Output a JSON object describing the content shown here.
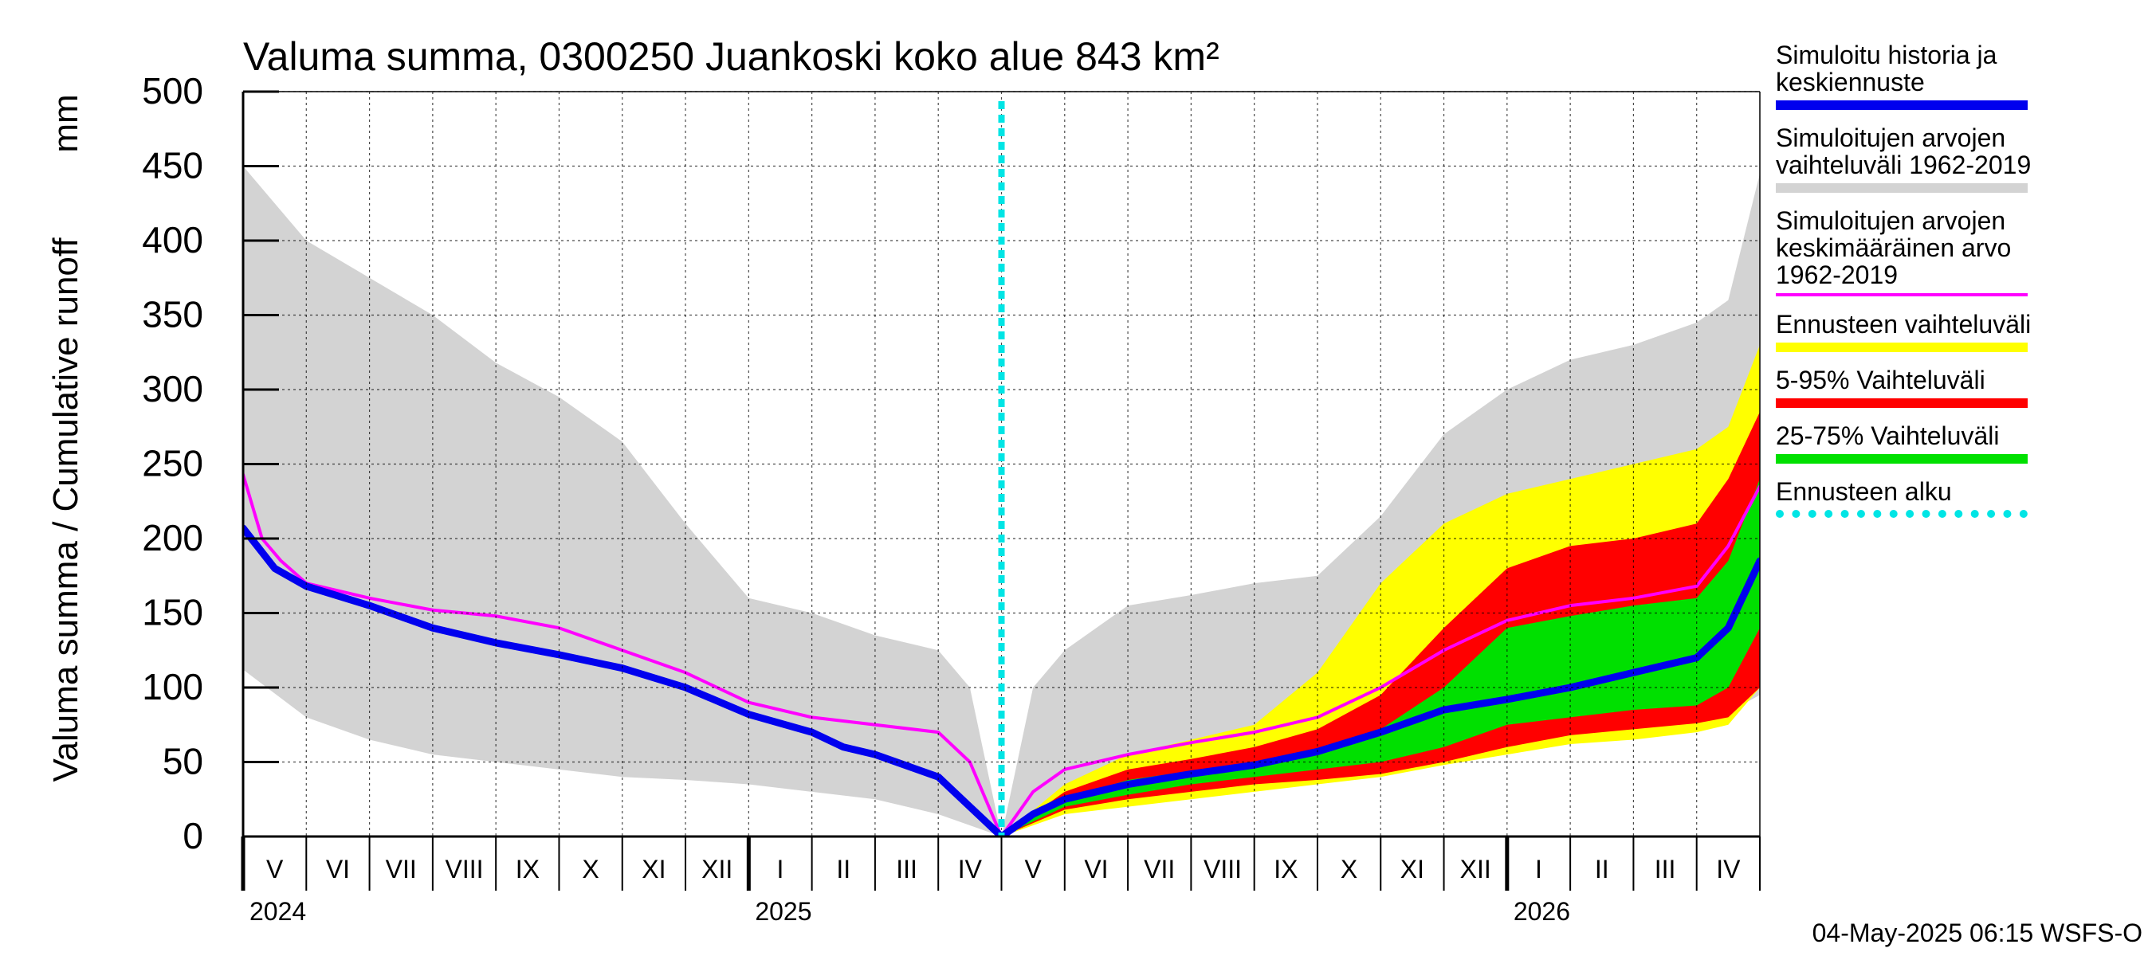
{
  "chart_data": {
    "type": "area",
    "title": "Valuma summa, 0300250 Juankoski koko alue 843 km²",
    "ylabel": "Valuma summa / Cumulative runoff",
    "yunit": "mm",
    "ylim": [
      0,
      500
    ],
    "yticks": [
      0,
      50,
      100,
      150,
      200,
      250,
      300,
      350,
      400,
      450,
      500
    ],
    "xlim": [
      0,
      24
    ],
    "forecast_start": 12,
    "month_labels": [
      "V",
      "VI",
      "VII",
      "VIII",
      "IX",
      "X",
      "XI",
      "XII",
      "I",
      "II",
      "III",
      "IV",
      "V",
      "VI",
      "VII",
      "VIII",
      "IX",
      "X",
      "XI",
      "XII",
      "I",
      "II",
      "III",
      "IV"
    ],
    "year_labels": [
      {
        "label": "2024",
        "month_index": 0
      },
      {
        "label": "2025",
        "month_index": 8
      },
      {
        "label": "2026",
        "month_index": 20
      }
    ],
    "series": [
      {
        "name": "Simuloitujen arvojen vaihteluväli 1962-2019 (upper)",
        "color": "#d3d3d3",
        "x": [
          0,
          1,
          2,
          3,
          4,
          5,
          6,
          7,
          8,
          9,
          10,
          11,
          11.5,
          12,
          12.5,
          13,
          14,
          15,
          16,
          17,
          18,
          19,
          20,
          21,
          22,
          23,
          23.5,
          24
        ],
        "y": [
          450,
          400,
          375,
          350,
          318,
          295,
          265,
          210,
          160,
          150,
          135,
          125,
          100,
          0,
          100,
          125,
          155,
          162,
          170,
          175,
          215,
          270,
          300,
          320,
          330,
          345,
          360,
          445
        ]
      },
      {
        "name": "Simuloitujen arvojen vaihteluväli 1962-2019 (lower)",
        "color": "#d3d3d3",
        "x": [
          0,
          1,
          2,
          3,
          4,
          5,
          6,
          7,
          8,
          9,
          10,
          11,
          12,
          13,
          14,
          15,
          16,
          17,
          18,
          19,
          20,
          21,
          22,
          23,
          24
        ],
        "y": [
          112,
          80,
          65,
          55,
          50,
          45,
          40,
          38,
          35,
          30,
          25,
          15,
          0,
          18,
          25,
          28,
          32,
          38,
          45,
          55,
          60,
          65,
          68,
          72,
          95
        ]
      },
      {
        "name": "Ennusteen vaihteluväli (upper)",
        "color": "#ffff00",
        "x": [
          12,
          13,
          14,
          15,
          16,
          17,
          17.5,
          18,
          19,
          20,
          21,
          22,
          23,
          23.5,
          24
        ],
        "y": [
          0,
          35,
          55,
          65,
          75,
          110,
          140,
          170,
          210,
          230,
          240,
          250,
          260,
          275,
          330
        ]
      },
      {
        "name": "Ennusteen vaihteluväli (lower)",
        "color": "#ffff00",
        "x": [
          12,
          13,
          14,
          15,
          16,
          17,
          18,
          19,
          20,
          21,
          22,
          23,
          23.5,
          24
        ],
        "y": [
          0,
          15,
          20,
          25,
          30,
          35,
          40,
          48,
          55,
          62,
          65,
          70,
          75,
          100
        ]
      },
      {
        "name": "5-95% Vaihteluväli (upper)",
        "color": "#ff0000",
        "x": [
          12,
          13,
          14,
          15,
          16,
          17,
          18,
          19,
          20,
          21,
          22,
          23,
          23.5,
          24
        ],
        "y": [
          0,
          30,
          45,
          52,
          60,
          72,
          95,
          140,
          180,
          195,
          200,
          210,
          240,
          285
        ]
      },
      {
        "name": "5-95% Vaihteluväli (lower)",
        "color": "#ff0000",
        "x": [
          12,
          13,
          14,
          15,
          16,
          17,
          18,
          19,
          20,
          21,
          22,
          23,
          23.5,
          24
        ],
        "y": [
          0,
          18,
          25,
          30,
          35,
          38,
          42,
          50,
          60,
          68,
          72,
          76,
          80,
          100
        ]
      },
      {
        "name": "25-75% Vaihteluväli (upper)",
        "color": "#00e000",
        "x": [
          12,
          13,
          14,
          15,
          16,
          17,
          18,
          19,
          20,
          21,
          22,
          23,
          23.5,
          24
        ],
        "y": [
          0,
          25,
          38,
          44,
          50,
          58,
          72,
          100,
          140,
          148,
          155,
          160,
          185,
          240
        ]
      },
      {
        "name": "25-75% Vaihteluväli (lower)",
        "color": "#00e000",
        "x": [
          12,
          13,
          14,
          15,
          16,
          17,
          18,
          19,
          20,
          21,
          22,
          23,
          23.5,
          24
        ],
        "y": [
          0,
          20,
          28,
          35,
          40,
          45,
          50,
          60,
          75,
          80,
          85,
          88,
          100,
          140
        ]
      },
      {
        "name": "Simuloitujen arvojen keskimääräinen arvo 1962-2019",
        "color": "#ff00ff",
        "x": [
          0,
          0.3,
          0.6,
          1,
          1.5,
          2,
          3,
          4,
          5,
          6,
          7,
          8,
          9,
          10,
          11,
          11.5,
          12,
          12.5,
          13,
          14,
          15,
          16,
          17,
          18,
          19,
          20,
          21,
          22,
          23,
          23.5,
          24
        ],
        "y": [
          243,
          200,
          185,
          170,
          165,
          160,
          152,
          148,
          140,
          125,
          110,
          90,
          80,
          75,
          70,
          50,
          0,
          30,
          45,
          55,
          63,
          70,
          80,
          100,
          125,
          145,
          155,
          160,
          168,
          195,
          235
        ]
      },
      {
        "name": "Simuloitu historia ja keskiennuste",
        "color": "#0000ee",
        "x": [
          0,
          0.5,
          1,
          2,
          3,
          4,
          5,
          6,
          7,
          8,
          9,
          9.5,
          10,
          11,
          11.5,
          12,
          12.5,
          13,
          14,
          15,
          16,
          17,
          18,
          19,
          20,
          21,
          22,
          23,
          23.5,
          24
        ],
        "y": [
          207,
          180,
          168,
          155,
          140,
          130,
          122,
          113,
          100,
          82,
          70,
          60,
          55,
          40,
          20,
          0,
          15,
          25,
          35,
          42,
          48,
          57,
          70,
          85,
          92,
          100,
          110,
          120,
          140,
          185
        ]
      }
    ]
  },
  "legend": [
    {
      "label": "Simuloitu historia ja\nkeskiennuste",
      "color": "#0000ee",
      "style": "solid"
    },
    {
      "label": "Simuloitujen arvojen\nvaihteluväli 1962-2019",
      "color": "#d3d3d3",
      "style": "solid"
    },
    {
      "label": "Simuloitujen arvojen\nkeskimääräinen arvo\n   1962-2019",
      "color": "#ff00ff",
      "style": "thin"
    },
    {
      "label": "Ennusteen vaihteluväli",
      "color": "#ffff00",
      "style": "solid"
    },
    {
      "label": "5-95% Vaihteluväli",
      "color": "#ff0000",
      "style": "solid"
    },
    {
      "label": "25-75% Vaihteluväli",
      "color": "#00e000",
      "style": "solid"
    },
    {
      "label": "Ennusteen alku",
      "color": "#00e5e5",
      "style": "dotted"
    }
  ],
  "footer": "04-May-2025 06:15 WSFS-O"
}
